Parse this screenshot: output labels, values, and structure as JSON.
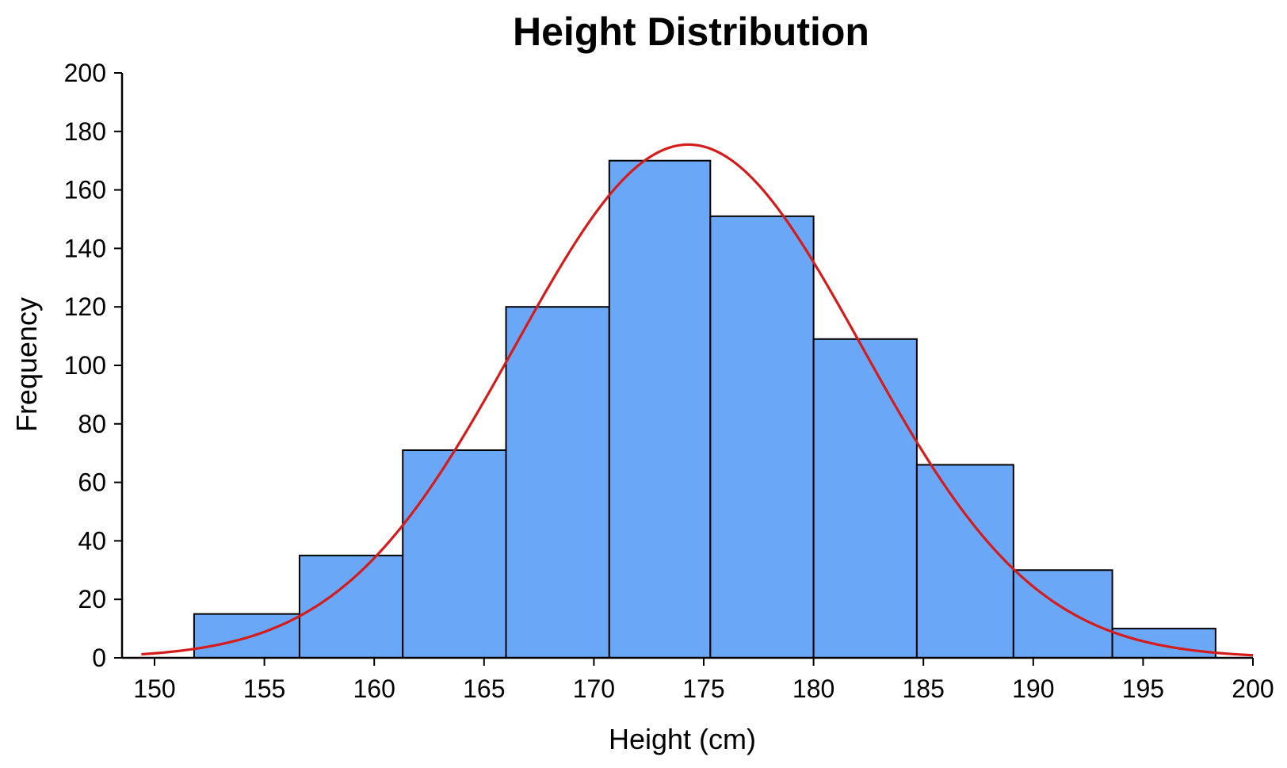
{
  "chart_data": {
    "type": "bar",
    "title": "Height Distribution",
    "xlabel": "Height (cm)",
    "ylabel": "Frequency",
    "xlim": [
      149,
      200
    ],
    "ylim": [
      0,
      200
    ],
    "x_ticks": [
      150,
      155,
      160,
      165,
      170,
      175,
      180,
      185,
      190,
      195,
      200
    ],
    "y_ticks": [
      0,
      20,
      40,
      60,
      80,
      100,
      120,
      140,
      160,
      180,
      200
    ],
    "bins": [
      {
        "start": 151.8,
        "end": 156.6,
        "value": 15
      },
      {
        "start": 156.6,
        "end": 161.3,
        "value": 35
      },
      {
        "start": 161.3,
        "end": 166.0,
        "value": 71
      },
      {
        "start": 166.0,
        "end": 170.7,
        "value": 120
      },
      {
        "start": 170.7,
        "end": 175.3,
        "value": 170
      },
      {
        "start": 175.3,
        "end": 180.0,
        "value": 151
      },
      {
        "start": 180.0,
        "end": 184.7,
        "value": 109
      },
      {
        "start": 184.7,
        "end": 189.1,
        "value": 66
      },
      {
        "start": 189.1,
        "end": 193.6,
        "value": 30
      },
      {
        "start": 193.6,
        "end": 198.3,
        "value": 10
      }
    ],
    "fit_curve": {
      "type": "normal",
      "mean": 174.3,
      "std": 7.9,
      "peak": 175.5,
      "x_range": [
        149.4,
        200
      ]
    },
    "grid": false,
    "colors": {
      "bar_fill": "#6aa7f6",
      "bar_edge": "#000000",
      "curve": "#d41c1c",
      "axis": "#000000"
    }
  }
}
